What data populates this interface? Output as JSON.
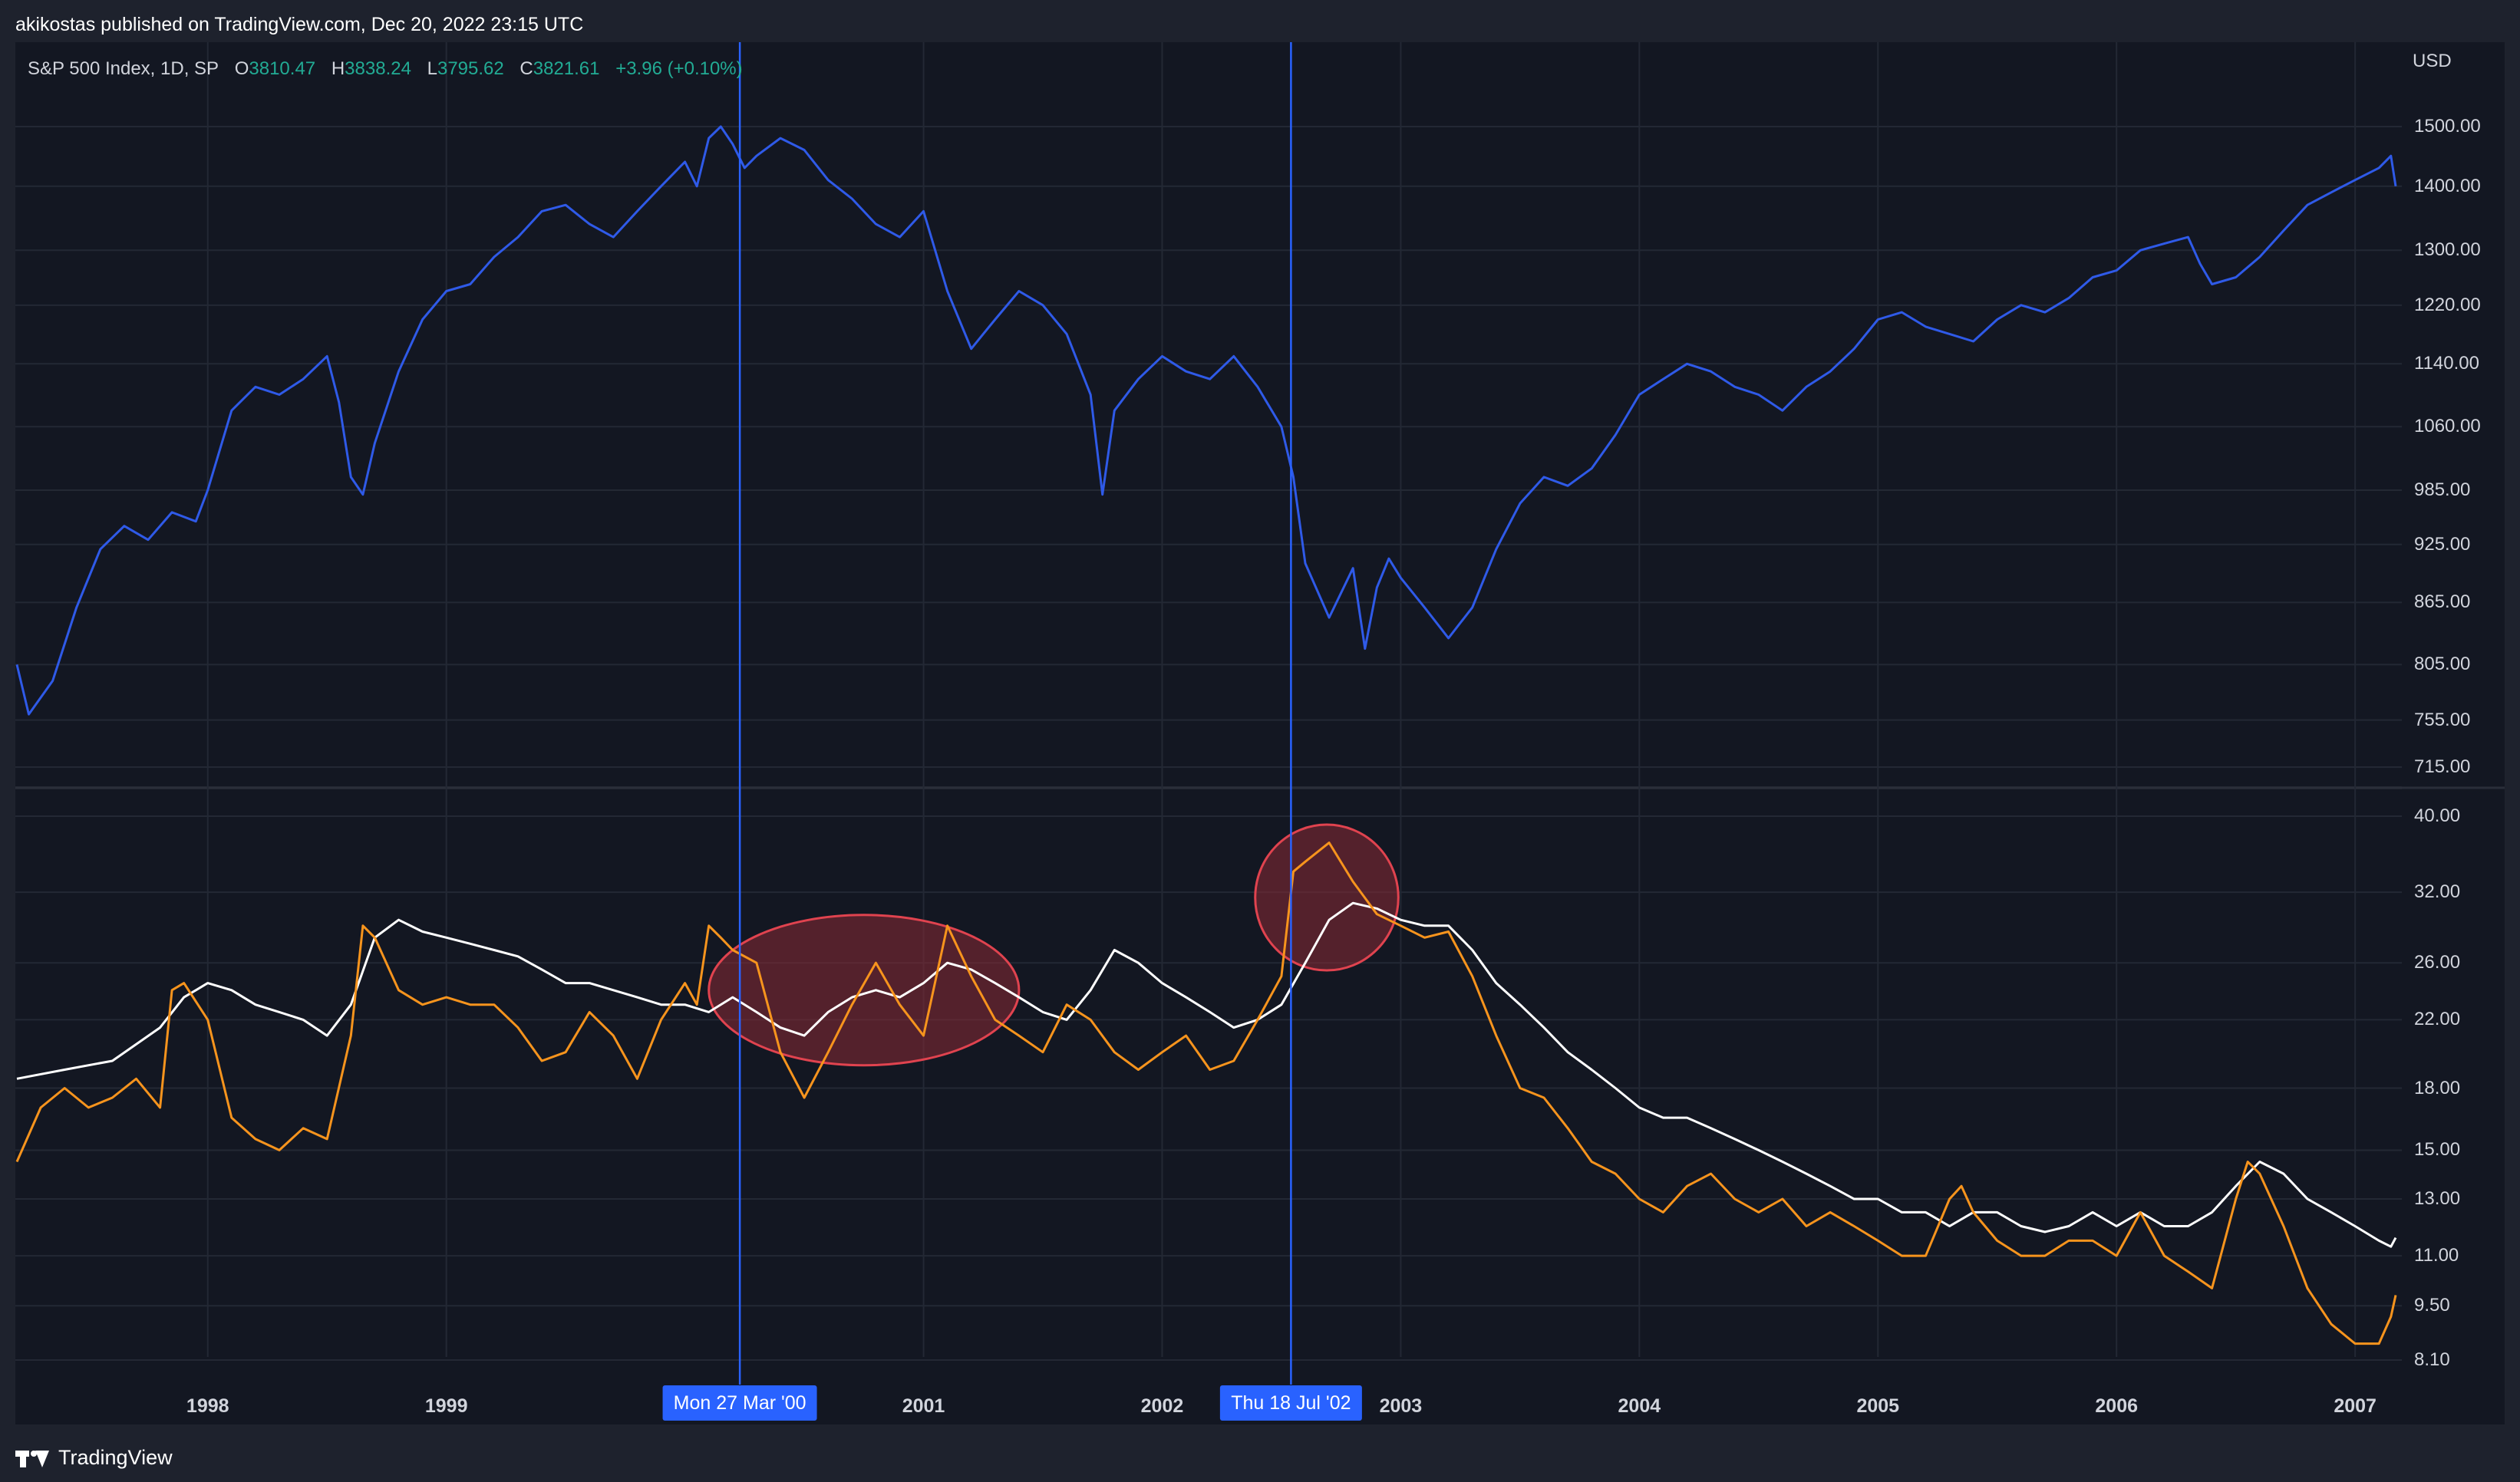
{
  "header": {
    "published": "akikostas published on TradingView.com, Dec 20, 2022 23:15 UTC"
  },
  "footer": {
    "brand": "TradingView"
  },
  "legend": {
    "symbol": "S&P 500 Index, 1D, SP",
    "o_label": "O",
    "o_value": "3810.47",
    "h_label": "H",
    "h_value": "3838.24",
    "l_label": "L",
    "l_value": "3795.62",
    "c_label": "C",
    "c_value": "3821.61",
    "change": "+3.96 (+0.10%)",
    "value_color": "#22ab94"
  },
  "colors": {
    "price_line": "#2f5ae8",
    "vol_fast": "#f7941d",
    "vol_slow": "#ffffff",
    "crosshair": "#2962ff",
    "highlight_fill": "#8b2a35",
    "highlight_stroke": "#e0434f",
    "grid": "#232834"
  },
  "chart_data": [
    {
      "type": "line",
      "unit": "USD",
      "y_scale": "log",
      "y_ticks": [
        "1500.00",
        "1400.00",
        "1300.00",
        "1220.00",
        "1140.00",
        "1060.00",
        "985.00",
        "925.00",
        "865.00",
        "805.00",
        "755.00",
        "715.00"
      ],
      "x_ticks": [
        "1998",
        "1999",
        "2001",
        "2002",
        "2003",
        "2004",
        "2005",
        "2006",
        "2007"
      ],
      "series": [
        {
          "x": [
            1997.2,
            1997.25,
            1997.35,
            1997.45,
            1997.55,
            1997.65,
            1997.75,
            1997.85,
            1997.95,
            1998.0,
            1998.1,
            1998.2,
            1998.3,
            1998.4,
            1998.5,
            1998.55,
            1998.6,
            1998.65,
            1998.7,
            1998.8,
            1998.9,
            1999.0,
            1999.1,
            1999.2,
            1999.3,
            1999.4,
            1999.5,
            1999.6,
            1999.7,
            1999.8,
            1999.9,
            2000.0,
            2000.05,
            2000.1,
            2000.15,
            2000.2,
            2000.25,
            2000.3,
            2000.4,
            2000.5,
            2000.6,
            2000.7,
            2000.8,
            2000.9,
            2001.0,
            2001.1,
            2001.2,
            2001.25,
            2001.3,
            2001.4,
            2001.5,
            2001.6,
            2001.7,
            2001.75,
            2001.8,
            2001.9,
            2002.0,
            2002.1,
            2002.2,
            2002.3,
            2002.4,
            2002.5,
            2002.55,
            2002.6,
            2002.7,
            2002.8,
            2002.85,
            2002.9,
            2002.95,
            2003.0,
            2003.1,
            2003.2,
            2003.3,
            2003.4,
            2003.5,
            2003.6,
            2003.7,
            2003.8,
            2003.9,
            2004.0,
            2004.1,
            2004.2,
            2004.3,
            2004.4,
            2004.5,
            2004.6,
            2004.7,
            2004.8,
            2004.9,
            2005.0,
            2005.1,
            2005.2,
            2005.3,
            2005.4,
            2005.5,
            2005.6,
            2005.7,
            2005.8,
            2005.9,
            2006.0,
            2006.1,
            2006.2,
            2006.3,
            2006.35,
            2006.4,
            2006.5,
            2006.6,
            2006.7,
            2006.8,
            2006.9,
            2007.0,
            2007.1,
            2007.15,
            2007.17
          ],
          "values": [
            805,
            760,
            790,
            860,
            920,
            945,
            930,
            960,
            950,
            985,
            1080,
            1110,
            1100,
            1120,
            1150,
            1090,
            1000,
            980,
            1040,
            1130,
            1200,
            1240,
            1250,
            1290,
            1320,
            1360,
            1370,
            1340,
            1320,
            1360,
            1400,
            1440,
            1400,
            1480,
            1500,
            1470,
            1430,
            1450,
            1480,
            1460,
            1410,
            1380,
            1340,
            1320,
            1360,
            1240,
            1160,
            1180,
            1200,
            1240,
            1220,
            1180,
            1100,
            980,
            1080,
            1120,
            1150,
            1130,
            1120,
            1150,
            1110,
            1060,
            1000,
            905,
            850,
            900,
            820,
            880,
            910,
            890,
            860,
            830,
            860,
            920,
            970,
            1000,
            990,
            1010,
            1050,
            1100,
            1120,
            1140,
            1130,
            1110,
            1100,
            1080,
            1110,
            1130,
            1160,
            1200,
            1210,
            1190,
            1180,
            1170,
            1200,
            1220,
            1210,
            1230,
            1260,
            1270,
            1300,
            1310,
            1320,
            1280,
            1250,
            1260,
            1290,
            1330,
            1370,
            1390,
            1410,
            1430,
            1450,
            1400
          ]
        }
      ]
    },
    {
      "type": "line",
      "y_scale": "log",
      "y_ticks": [
        "40.00",
        "32.00",
        "26.00",
        "22.00",
        "18.00",
        "15.00",
        "13.00",
        "11.00",
        "9.50",
        "8.10"
      ],
      "series": [
        {
          "x": [
            1997.2,
            1997.3,
            1997.4,
            1997.5,
            1997.6,
            1997.7,
            1997.8,
            1997.85,
            1997.9,
            1998.0,
            1998.1,
            1998.2,
            1998.3,
            1998.4,
            1998.5,
            1998.6,
            1998.65,
            1998.7,
            1998.8,
            1998.9,
            1999.0,
            1999.1,
            1999.2,
            1999.3,
            1999.4,
            1999.5,
            1999.6,
            1999.7,
            1999.8,
            1999.9,
            2000.0,
            2000.05,
            2000.1,
            2000.15,
            2000.2,
            2000.3,
            2000.4,
            2000.5,
            2000.6,
            2000.7,
            2000.8,
            2000.9,
            2001.0,
            2001.1,
            2001.2,
            2001.3,
            2001.4,
            2001.5,
            2001.6,
            2001.7,
            2001.8,
            2001.9,
            2002.0,
            2002.1,
            2002.2,
            2002.3,
            2002.4,
            2002.5,
            2002.55,
            2002.6,
            2002.7,
            2002.8,
            2002.9,
            2003.0,
            2003.1,
            2003.2,
            2003.3,
            2003.4,
            2003.5,
            2003.6,
            2003.7,
            2003.8,
            2003.9,
            2004.0,
            2004.1,
            2004.2,
            2004.3,
            2004.4,
            2004.5,
            2004.6,
            2004.7,
            2004.8,
            2004.9,
            2005.0,
            2005.1,
            2005.2,
            2005.3,
            2005.35,
            2005.4,
            2005.5,
            2005.6,
            2005.7,
            2005.8,
            2005.9,
            2006.0,
            2006.1,
            2006.2,
            2006.3,
            2006.4,
            2006.5,
            2006.55,
            2006.6,
            2006.7,
            2006.8,
            2006.9,
            2007.0,
            2007.1,
            2007.15,
            2007.17
          ],
          "values": [
            14.5,
            17.0,
            18.0,
            17.0,
            17.5,
            18.5,
            17.0,
            24.0,
            24.5,
            22.0,
            16.5,
            15.5,
            15.0,
            16.0,
            15.5,
            21.0,
            29.0,
            28.0,
            24.0,
            23.0,
            23.5,
            23.0,
            23.0,
            21.5,
            19.5,
            20.0,
            22.5,
            21.0,
            18.5,
            22.0,
            24.5,
            23.0,
            29.0,
            28.0,
            27.0,
            26.0,
            20.0,
            17.5,
            20.0,
            23.0,
            26.0,
            23.0,
            21.0,
            29.0,
            25.0,
            22.0,
            21.0,
            20.0,
            23.0,
            22.0,
            20.0,
            19.0,
            20.0,
            21.0,
            19.0,
            19.5,
            22.0,
            25.0,
            34.0,
            35.0,
            37.0,
            33.0,
            30.0,
            29.0,
            28.0,
            28.5,
            25.0,
            21.0,
            18.0,
            17.5,
            16.0,
            14.5,
            14.0,
            13.0,
            12.5,
            13.5,
            14.0,
            13.0,
            12.5,
            13.0,
            12.0,
            12.5,
            12.0,
            11.5,
            11.0,
            11.0,
            13.0,
            13.5,
            12.5,
            11.5,
            11.0,
            11.0,
            11.5,
            11.5,
            11.0,
            12.5,
            11.0,
            10.5,
            10.0,
            13.0,
            14.5,
            14.0,
            12.0,
            10.0,
            9.0,
            8.5,
            8.5,
            9.2,
            9.8
          ]
        },
        {
          "x": [
            1997.2,
            1997.4,
            1997.6,
            1997.8,
            1997.9,
            1998.0,
            1998.1,
            1998.2,
            1998.3,
            1998.4,
            1998.5,
            1998.6,
            1998.7,
            1998.8,
            1998.9,
            1999.0,
            1999.1,
            1999.2,
            1999.3,
            1999.4,
            1999.5,
            1999.6,
            1999.7,
            1999.8,
            1999.9,
            2000.0,
            2000.1,
            2000.2,
            2000.3,
            2000.4,
            2000.5,
            2000.6,
            2000.7,
            2000.8,
            2000.9,
            2001.0,
            2001.1,
            2001.2,
            2001.3,
            2001.4,
            2001.5,
            2001.6,
            2001.7,
            2001.8,
            2001.9,
            2002.0,
            2002.1,
            2002.2,
            2002.3,
            2002.4,
            2002.5,
            2002.6,
            2002.7,
            2002.8,
            2002.9,
            2003.0,
            2003.1,
            2003.2,
            2003.3,
            2003.4,
            2003.5,
            2003.6,
            2003.7,
            2003.8,
            2003.9,
            2004.0,
            2004.1,
            2004.2,
            2004.3,
            2004.4,
            2004.5,
            2004.6,
            2004.7,
            2004.8,
            2004.9,
            2005.0,
            2005.1,
            2005.2,
            2005.3,
            2005.4,
            2005.5,
            2005.6,
            2005.7,
            2005.8,
            2005.9,
            2006.0,
            2006.1,
            2006.2,
            2006.3,
            2006.4,
            2006.5,
            2006.6,
            2006.7,
            2006.8,
            2006.9,
            2007.0,
            2007.1,
            2007.15,
            2007.17
          ],
          "values": [
            18.5,
            19.0,
            19.5,
            21.5,
            23.5,
            24.5,
            24.0,
            23.0,
            22.5,
            22.0,
            21.0,
            23.0,
            28.0,
            29.5,
            28.5,
            28.0,
            27.5,
            27.0,
            26.5,
            25.5,
            24.5,
            24.5,
            24.0,
            23.5,
            23.0,
            23.0,
            22.5,
            23.5,
            22.5,
            21.5,
            21.0,
            22.5,
            23.5,
            24.0,
            23.5,
            24.5,
            26.0,
            25.5,
            24.5,
            23.5,
            22.5,
            22.0,
            24.0,
            27.0,
            26.0,
            24.5,
            23.5,
            22.5,
            21.5,
            22.0,
            23.0,
            26.0,
            29.5,
            31.0,
            30.5,
            29.5,
            29.0,
            29.0,
            27.0,
            24.5,
            23.0,
            21.5,
            20.0,
            19.0,
            18.0,
            17.0,
            16.5,
            16.5,
            16.0,
            15.5,
            15.0,
            14.5,
            14.0,
            13.5,
            13.0,
            13.0,
            12.5,
            12.5,
            12.0,
            12.5,
            12.5,
            12.0,
            11.8,
            12.0,
            12.5,
            12.0,
            12.5,
            12.0,
            12.0,
            12.5,
            13.5,
            14.5,
            14.0,
            13.0,
            12.5,
            12.0,
            11.5,
            11.3,
            11.6
          ]
        }
      ]
    }
  ],
  "crosshairs": [
    {
      "x": 2000.23,
      "label": "Mon 27 Mar '00"
    },
    {
      "x": 2002.54,
      "label": "Thu 18 Jul '02"
    }
  ],
  "highlights": [
    {
      "cx": 2000.75,
      "cy": 24.0,
      "rx_years": 0.65,
      "label": ""
    },
    {
      "cx": 2002.69,
      "cy": 31.5,
      "rx_years": 0.3,
      "label": ""
    }
  ]
}
